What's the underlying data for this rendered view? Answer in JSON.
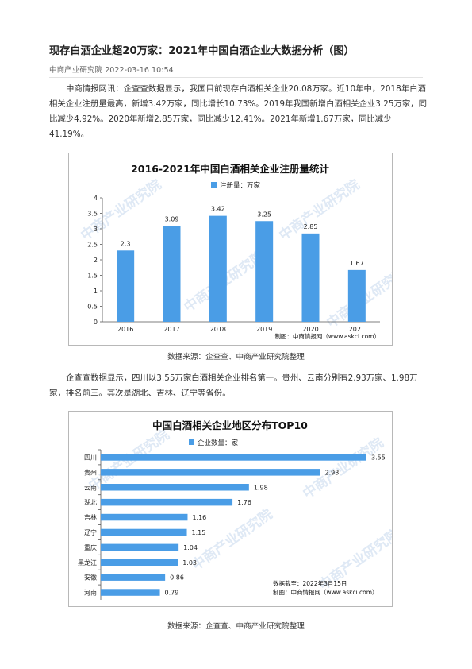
{
  "article": {
    "title": "现存白酒企业超20万家：2021年中国白酒企业大数据分析（图）",
    "meta": "中商产业研究院 2022-03-16 10:54",
    "para1": "中商情报网讯：企查查数据显示，我国目前现存白酒相关企业20.08万家。近10年中，2018年白酒相关企业注册量最高，新增3.42万家，同比增长10.73%。2019年我国新增白酒相关企业3.25万家，同比减少4.92%。2020年新增2.85万家，同比减少12.41%。2021年新增1.67万家，同比减少41.19%。",
    "caption1": "数据来源：企查查、中商产业研究院整理",
    "para2": "企查查数据显示，四川以3.55万家白酒相关企业排名第一。贵州、云南分别有2.93万家、1.98万家，排名前三。其次是湖北、吉林、辽宁等省份。",
    "caption2": "数据来源：企查查、中商产业研究院整理"
  },
  "colors": {
    "bar": "#4a9de6",
    "watermark": "#dfe9f5"
  },
  "watermark_text": "中商产业研究院",
  "chart_data": [
    {
      "type": "bar",
      "title": "2016-2021年中国白酒相关企业注册量统计",
      "legend": "注册量：万家",
      "legend_position": "top",
      "categories": [
        "2016",
        "2017",
        "2018",
        "2019",
        "2020",
        "2021"
      ],
      "values": [
        2.3,
        3.09,
        3.42,
        3.25,
        2.85,
        1.67
      ],
      "value_labels": [
        "2.3",
        "3.09",
        "3.42",
        "3.25",
        "2.85",
        "1.67"
      ],
      "yticks": [
        "0",
        "0.5",
        "1",
        "1.5",
        "2",
        "2.5",
        "3",
        "3.5",
        "4"
      ],
      "ylim": [
        0,
        4
      ],
      "grid": false,
      "source_note": "制图：中商情报网（www.askci.com）"
    },
    {
      "type": "bar",
      "orientation": "horizontal",
      "title": "中国白酒相关企业地区分布TOP10",
      "legend": "企业数量：家",
      "legend_position": "top",
      "categories": [
        "四川",
        "贵州",
        "云南",
        "湖北",
        "吉林",
        "辽宁",
        "重庆",
        "黑龙江",
        "安徽",
        "河南"
      ],
      "values": [
        3.55,
        2.93,
        1.98,
        1.76,
        1.16,
        1.15,
        1.04,
        1.03,
        0.86,
        0.79
      ],
      "value_labels": [
        "3.55",
        "2.93",
        "1.98",
        "1.76",
        "1.16",
        "1.15",
        "1.04",
        "1.03",
        "0.86",
        "0.79"
      ],
      "xlim": [
        0,
        3.55
      ],
      "grid": false,
      "note_date": "数据截至：2022年3月15日",
      "source_note": "制图：中商情报网（www.askci.com）"
    }
  ]
}
